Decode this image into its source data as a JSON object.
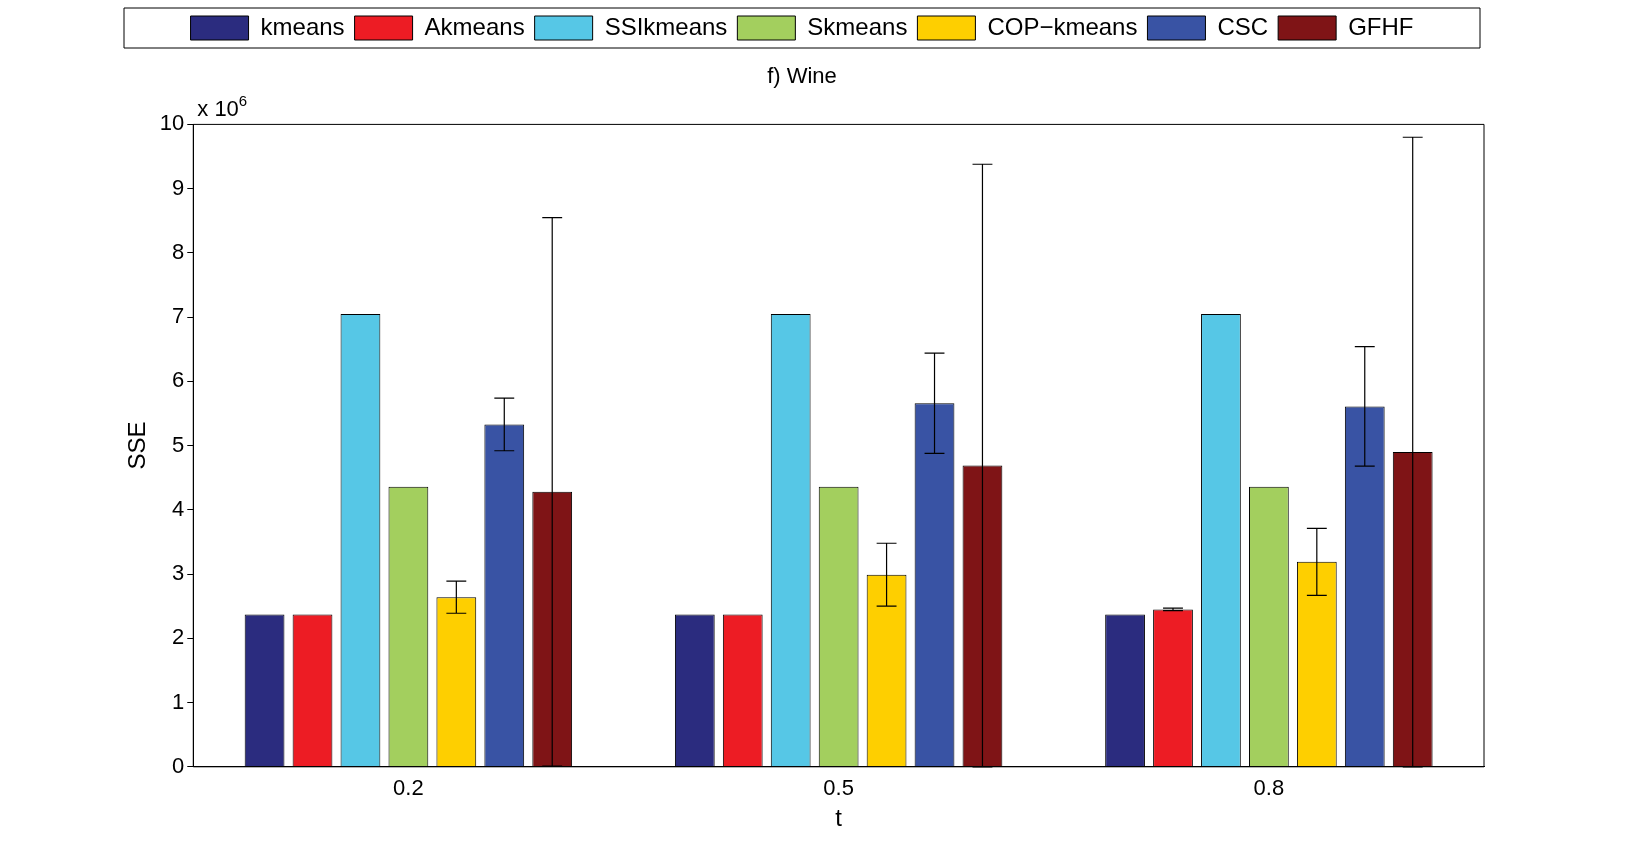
{
  "chart_data": {
    "type": "bar",
    "title": "f) Wine",
    "xlabel": "t",
    "ylabel": "SSE",
    "annotations": [
      "x 10$^{6}$"
    ],
    "categories": [
      "0.2",
      "0.5",
      "0.8"
    ],
    "series": [
      {
        "name": "kmeans",
        "color": "#2b2c7f",
        "values": [
          2.37,
          2.37,
          2.37
        ]
      },
      {
        "name": "Akmeans",
        "color": "#ed1c24",
        "values": [
          2.37,
          2.37,
          2.45
        ],
        "errors": [
          null,
          null,
          0.02
        ]
      },
      {
        "name": "SSIkmeans",
        "color": "#56c7e6",
        "values": [
          7.05,
          7.05,
          7.05
        ]
      },
      {
        "name": "Skmeans",
        "color": "#a3cf5e",
        "values": [
          4.36,
          4.36,
          4.36
        ]
      },
      {
        "name": "COP−kmeans",
        "color": "#fecf00",
        "values": [
          2.64,
          2.99,
          3.19
        ],
        "errors": [
          0.25,
          0.49,
          0.52
        ]
      },
      {
        "name": "CSC",
        "color": "#3953a4",
        "values": [
          5.33,
          5.66,
          5.61
        ],
        "errors": [
          0.41,
          0.78,
          0.93
        ]
      },
      {
        "name": "GFHF",
        "color": "#7f1416",
        "values": [
          4.28,
          4.69,
          4.9
        ],
        "errors": [
          4.27,
          4.69,
          4.9
        ]
      }
    ],
    "ylim": [
      0,
      10
    ],
    "yticks": [
      0,
      1,
      2,
      3,
      4,
      5,
      6,
      7,
      8,
      9,
      10
    ],
    "grid": false,
    "legend": "top"
  }
}
